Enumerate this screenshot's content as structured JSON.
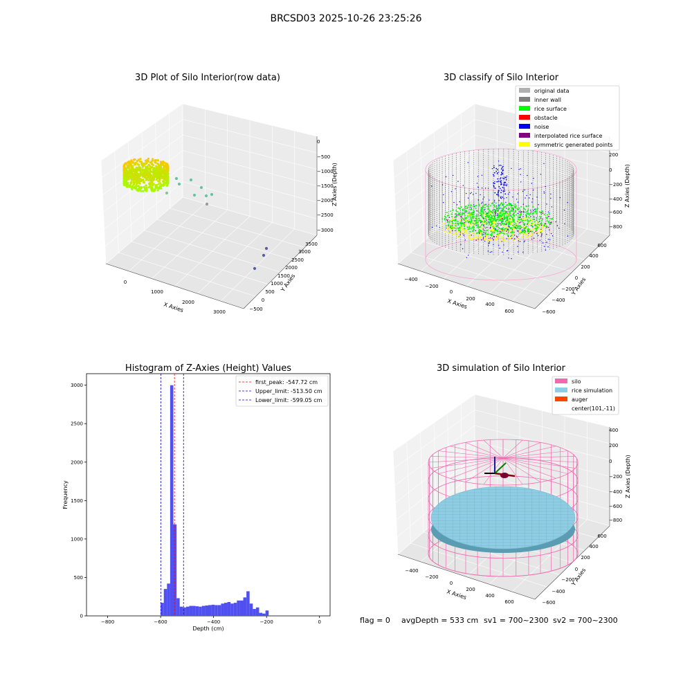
{
  "figure_title": "BRCSD03 2025-10-26 23:25:26",
  "status_line": {
    "flag": "flag = 0",
    "avg_depth": "avgDepth = 533 cm",
    "sv1": "sv1 = 700~2300",
    "sv2": "sv2 = 700~2300"
  },
  "colors": {
    "hist_bar": "#5050f0",
    "peak_line": "#ff0000",
    "limit_line": "#0000cc",
    "silo_pink": "#f06ab0",
    "rice_blue": "#8ecde3",
    "auger": "#ff4500",
    "rice_green": "#00ff00",
    "inner_wall": "#808080",
    "noise": "#0000ee",
    "interp": "#800080",
    "symmetric": "#ffff00",
    "original": "#b0b0b0",
    "obstacle": "#ff0000"
  },
  "chart_data": [
    {
      "id": "raw",
      "type": "scatter",
      "title": "3D Plot of Silo Interior(row data)",
      "xlabel": "X Axies",
      "ylabel": "Y Axies",
      "zlabel": "Z Axies (Depth)",
      "x_ticks": [
        "0",
        "1000",
        "2000",
        "3000"
      ],
      "y_ticks": [
        "−500",
        "0",
        "500",
        "1000",
        "1500",
        "2000",
        "2500",
        "3000",
        "3500"
      ],
      "z_ticks": [
        "0",
        "−500",
        "−1000",
        "−1500",
        "−2000",
        "−2500",
        "−3000"
      ],
      "outliers": [
        {
          "x": 700,
          "y": 400,
          "z": -1400
        },
        {
          "x": 780,
          "y": 450,
          "z": -1450
        },
        {
          "x": 900,
          "y": 500,
          "z": -1380
        },
        {
          "x": 1000,
          "y": 600,
          "z": -1500
        },
        {
          "x": 1100,
          "y": 650,
          "z": -1600
        },
        {
          "x": 1150,
          "y": 700,
          "z": -1700
        },
        {
          "x": 1250,
          "y": 800,
          "z": -1650
        },
        {
          "x": 3000,
          "y": 3300,
          "z": -3000
        },
        {
          "x": 3050,
          "y": 3200,
          "z": -3050
        },
        {
          "x": 3000,
          "y": 3100,
          "z": -3100
        }
      ]
    },
    {
      "id": "classify",
      "type": "scatter",
      "title": "3D classify of Silo Interior",
      "xlabel": "X Axies",
      "ylabel": "Y Axies",
      "zlabel": "Z Axies (Depth)",
      "x_ticks": [
        "−400",
        "−200",
        "0",
        "200",
        "400",
        "600"
      ],
      "y_ticks": [
        "−600",
        "−400",
        "−200",
        "0",
        "200",
        "400",
        "600"
      ],
      "z_ticks": [
        "200",
        "0",
        "−200",
        "−400",
        "−600",
        "−800"
      ],
      "legend": [
        {
          "label": "original data",
          "color": "#b0b0b0"
        },
        {
          "label": "inner wall",
          "color": "#808080"
        },
        {
          "label": "rice surface",
          "color": "#00ff00"
        },
        {
          "label": "obstacle",
          "color": "#ff0000"
        },
        {
          "label": "noise",
          "color": "#0000ee"
        },
        {
          "label": "interpolated rice surface",
          "color": "#800080"
        },
        {
          "label": "symmetric generated points",
          "color": "#ffff00"
        }
      ]
    },
    {
      "id": "hist",
      "type": "bar",
      "title": "Histogram of Z-Axies (Height) Values",
      "xlabel": "Depth (cm)",
      "ylabel": "Frequency",
      "xlim": [
        -880,
        40
      ],
      "ylim": [
        0,
        3150
      ],
      "x_ticks": [
        "−800",
        "−600",
        "−400",
        "−200",
        "0"
      ],
      "x_tick_values": [
        -800,
        -600,
        -400,
        -200,
        0
      ],
      "y_ticks": [
        "0",
        "500",
        "1000",
        "1500",
        "2000",
        "2500",
        "3000"
      ],
      "y_tick_values": [
        0,
        500,
        1000,
        1500,
        2000,
        2500,
        3000
      ],
      "bin_start": -600,
      "bin_width": 12,
      "values": [
        170,
        350,
        420,
        3000,
        1190,
        230,
        120,
        110,
        120,
        130,
        130,
        125,
        120,
        130,
        135,
        140,
        145,
        140,
        140,
        160,
        170,
        180,
        160,
        170,
        200,
        200,
        240,
        320,
        160,
        90,
        110,
        40,
        30,
        70
      ],
      "legend": [
        {
          "label": "first_peak: -547.72 cm",
          "color": "#ff0000"
        },
        {
          "label": "Upper_limit: -513.50 cm",
          "color": "#0000cc"
        },
        {
          "label": "Lower_limit: -599.05 cm",
          "color": "#0000cc"
        }
      ],
      "vlines": [
        -547.72,
        -513.5,
        -599.05
      ]
    },
    {
      "id": "sim",
      "type": "scatter",
      "title": "3D simulation of Silo Interior",
      "xlabel": "X Axies",
      "ylabel": "Y Axies",
      "zlabel": "Z Axies (Depth)",
      "x_ticks": [
        "−400",
        "−200",
        "0",
        "200",
        "400",
        "600"
      ],
      "y_ticks": [
        "−600",
        "−400",
        "−200",
        "0",
        "200",
        "400",
        "600"
      ],
      "z_ticks": [
        "400",
        "200",
        "0",
        "−200",
        "−400",
        "−600",
        "−800"
      ],
      "legend": [
        {
          "label": "silo",
          "color": "#f06ab0"
        },
        {
          "label": "rice simulation",
          "color": "#8ecde3"
        },
        {
          "label": "auger",
          "color": "#ff4500"
        },
        {
          "label": "center(101,-11)",
          "color": ""
        }
      ]
    }
  ]
}
